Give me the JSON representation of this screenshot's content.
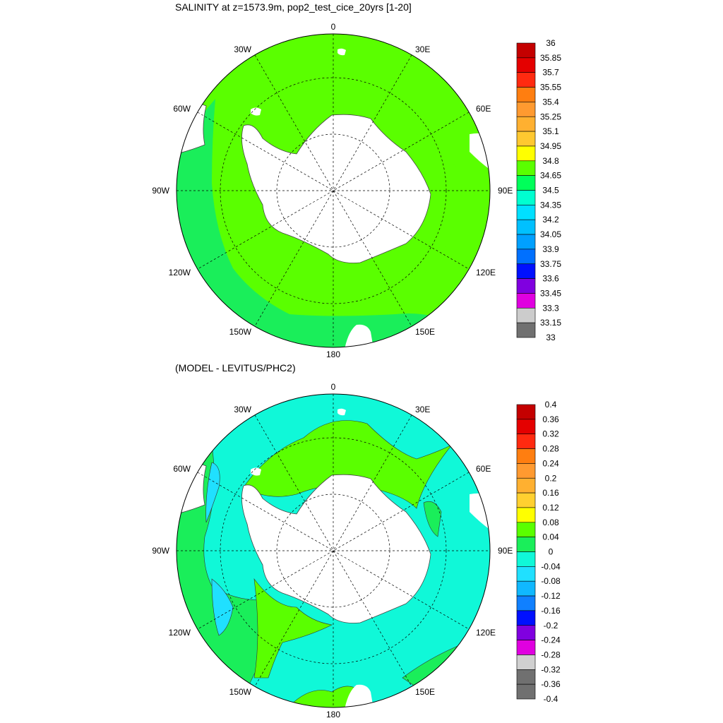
{
  "panels": [
    {
      "title": "SALINITY at z=1573.9m, pop2_test_cice_20yrs [1-20]",
      "lon_labels": [
        "0",
        "30E",
        "60E",
        "90E",
        "120E",
        "150E",
        "180",
        "150W",
        "120W",
        "90W",
        "60W",
        "30W"
      ],
      "colorbar": {
        "labels": [
          "36",
          "35.85",
          "35.7",
          "35.55",
          "35.4",
          "35.25",
          "35.1",
          "34.95",
          "34.8",
          "34.65",
          "34.5",
          "34.35",
          "34.2",
          "34.05",
          "33.9",
          "33.75",
          "33.6",
          "33.45",
          "33.3",
          "33.15",
          "33"
        ],
        "colors": [
          "#c40000",
          "#e40000",
          "#ff2a10",
          "#ff7e10",
          "#ff9a30",
          "#ffb030",
          "#ffc830",
          "#ffff00",
          "#5aff00",
          "#00ff5a",
          "#00ffd0",
          "#00e0ff",
          "#00c0ff",
          "#00a0ff",
          "#0070ff",
          "#0010ff",
          "#8000e0",
          "#e000e0",
          "#cccccc",
          "#707070"
        ]
      },
      "map_colors": {
        "main": "#5aff00",
        "outer": "#1aee5a",
        "land": "#ffffff"
      }
    },
    {
      "title": "(MODEL - LEVITUS/PHC2)",
      "lon_labels": [
        "0",
        "30E",
        "60E",
        "90E",
        "120E",
        "150E",
        "180",
        "150W",
        "120W",
        "90W",
        "60W",
        "30W"
      ],
      "colorbar": {
        "labels": [
          "0.4",
          "0.36",
          "0.32",
          "0.28",
          "0.24",
          "0.2",
          "0.16",
          "0.12",
          "0.08",
          "0.04",
          "0",
          "-0.04",
          "-0.08",
          "-0.12",
          "-0.16",
          "-0.2",
          "-0.24",
          "-0.28",
          "-0.32",
          "-0.36",
          "-0.4"
        ],
        "colors": [
          "#c40000",
          "#e40000",
          "#ff2a10",
          "#ff7e10",
          "#ff9a30",
          "#ffb030",
          "#ffd030",
          "#ffff00",
          "#5aff00",
          "#1aee5a",
          "#10f8d8",
          "#20e0ff",
          "#10b8ff",
          "#1080ff",
          "#0010ff",
          "#8000e0",
          "#e000e0",
          "#d0d0d0",
          "#707070",
          "#707070"
        ]
      },
      "map_colors": {
        "main": "#10f8d8",
        "outer": "#1aee5a",
        "band": "#5aff00",
        "land": "#ffffff"
      }
    }
  ]
}
